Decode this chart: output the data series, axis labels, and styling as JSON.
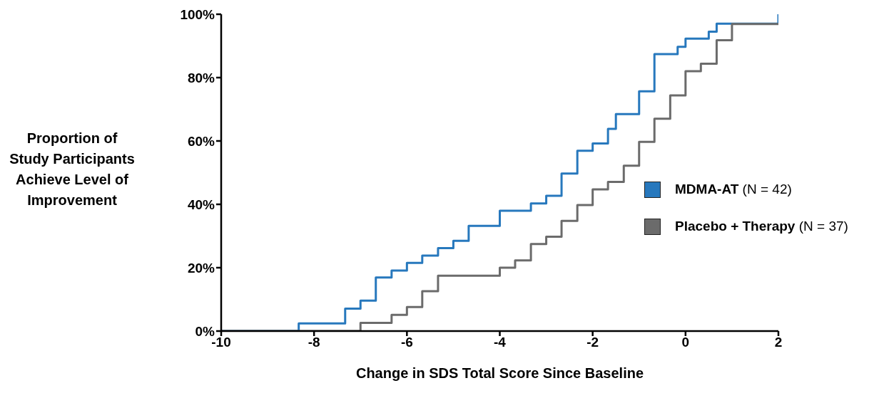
{
  "chart_data": {
    "type": "step",
    "xlabel": "Change in SDS Total Score Since Baseline",
    "ylabel": "Proportion of Study Participants Achieve Level of Improvement",
    "xlim": [
      -10,
      2
    ],
    "xticks": [
      -10,
      -8,
      -6,
      -4,
      -2,
      0,
      2
    ],
    "ylim": [
      0,
      100
    ],
    "yticks": [
      {
        "value": 0,
        "label": "0%"
      },
      {
        "value": 20,
        "label": "20%"
      },
      {
        "value": 40,
        "label": "40%"
      },
      {
        "value": 60,
        "label": "60%"
      },
      {
        "value": 80,
        "label": "80%"
      },
      {
        "value": 100,
        "label": "100%"
      }
    ],
    "grid": false,
    "legend": "right",
    "marker": "none",
    "line_style": "solid",
    "series": [
      {
        "name": "MDMA-AT (N = 42)",
        "color": "#2778bd",
        "x": [
          -10,
          -8.33,
          -7.33,
          -7,
          -6.67,
          -6.33,
          -6,
          -5.67,
          -5.33,
          -5,
          -4.67,
          -4,
          -3.33,
          -3,
          -2.67,
          -2.33,
          -2,
          -1.67,
          -1.5,
          -1,
          -0.67,
          -0.17,
          0,
          0.5,
          0.67,
          2
        ],
        "values": [
          0,
          2.4,
          7.1,
          9.6,
          16.9,
          19.1,
          21.5,
          23.8,
          26.2,
          28.5,
          33.2,
          38.0,
          40.3,
          42.7,
          49.7,
          56.9,
          59.2,
          63.8,
          68.5,
          75.7,
          87.4,
          89.7,
          92.3,
          94.5,
          97.0,
          100
        ]
      },
      {
        "name": "Placebo + Therapy (N = 37)",
        "color": "#6b6b6b",
        "x": [
          -10,
          -7,
          -6.33,
          -6,
          -5.67,
          -5.33,
          -4,
          -3.67,
          -3.33,
          -3,
          -2.67,
          -2.33,
          -2,
          -1.67,
          -1.33,
          -1,
          -0.67,
          -0.33,
          0,
          0.33,
          0.67,
          1,
          2
        ],
        "values": [
          0,
          2.6,
          5.1,
          7.6,
          12.6,
          17.5,
          20.0,
          22.3,
          27.5,
          29.8,
          34.8,
          39.8,
          44.7,
          47.1,
          52.2,
          59.7,
          67.0,
          74.4,
          82.0,
          84.4,
          91.8,
          96.9,
          96.9
        ]
      }
    ]
  }
}
